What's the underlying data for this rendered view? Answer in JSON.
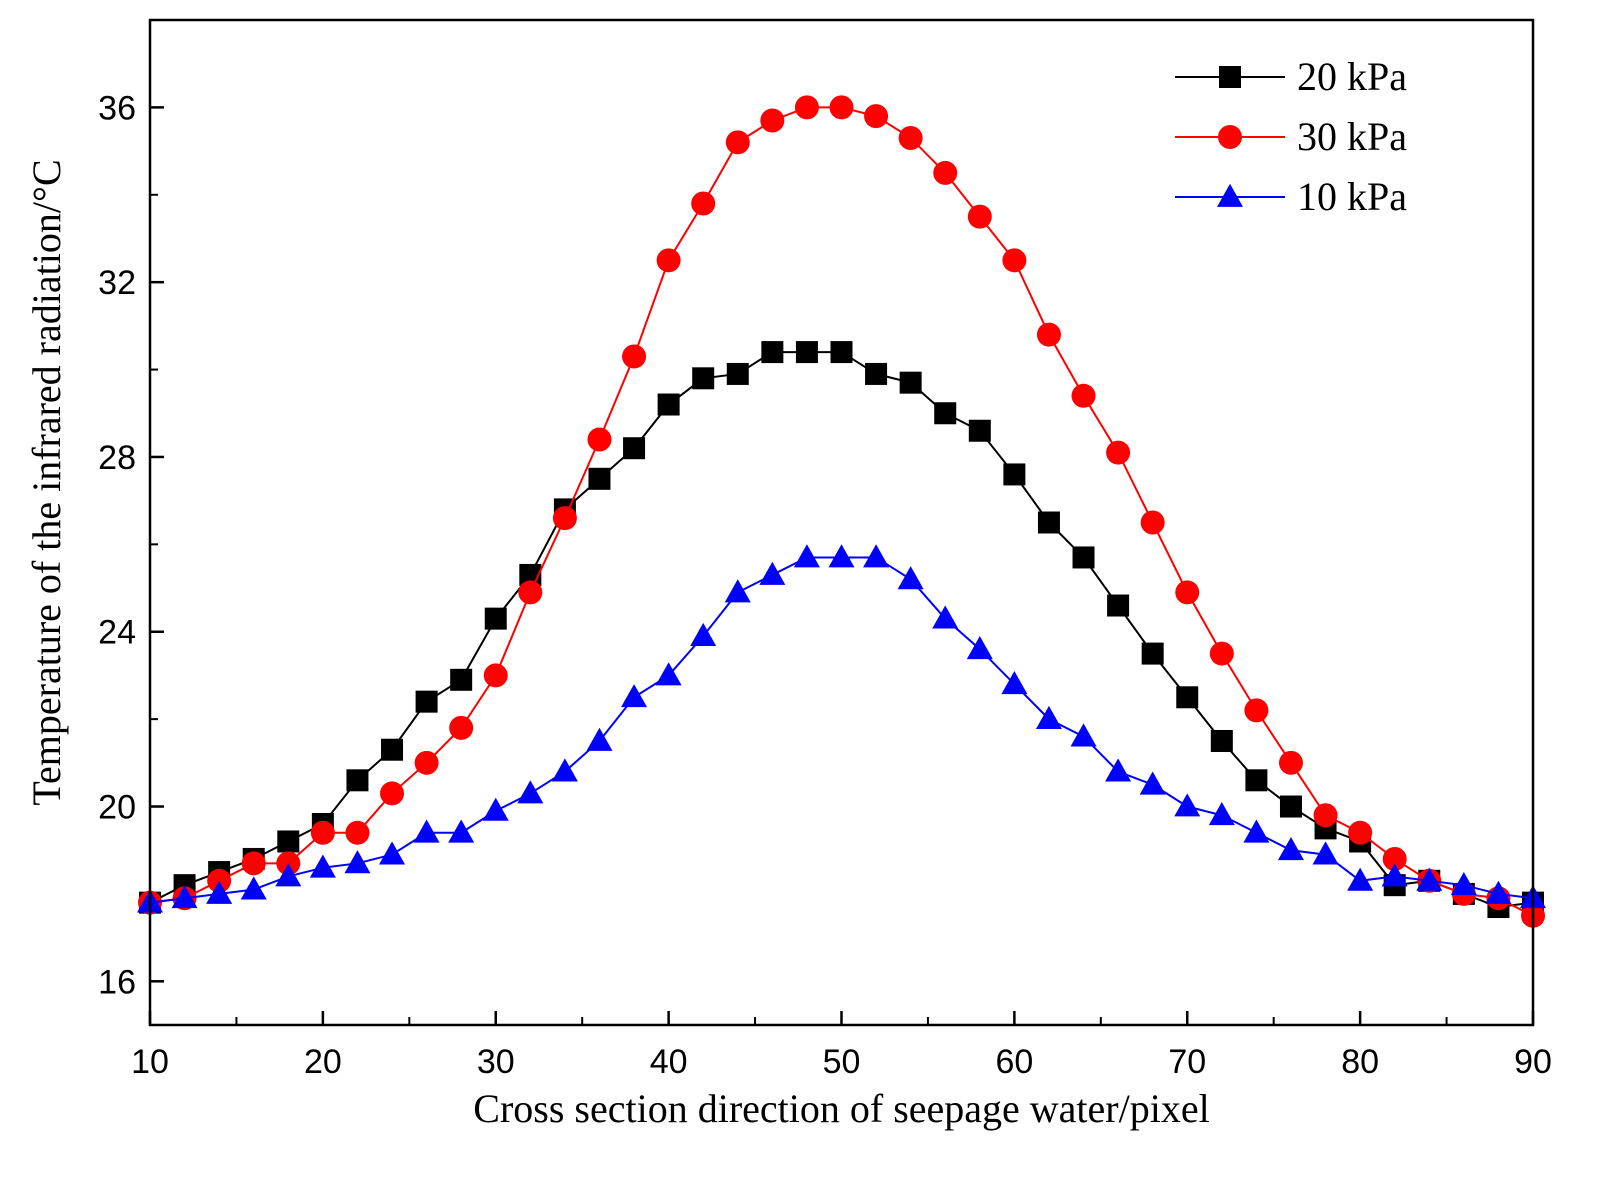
{
  "chart_data": {
    "type": "line",
    "title": "",
    "xlabel": "Cross section direction of seepage water/pixel",
    "ylabel": "Temperature of the infrared radiation/°C",
    "xlim": [
      10,
      90
    ],
    "ylim": [
      15,
      38
    ],
    "xticks": [
      10,
      20,
      30,
      40,
      50,
      60,
      70,
      80,
      90
    ],
    "yticks": [
      16,
      20,
      24,
      28,
      32,
      36
    ],
    "legend_position": "top-right",
    "x": [
      10,
      12,
      14,
      16,
      18,
      20,
      22,
      24,
      26,
      28,
      30,
      32,
      34,
      36,
      38,
      40,
      42,
      44,
      46,
      48,
      50,
      52,
      54,
      56,
      58,
      60,
      62,
      64,
      66,
      68,
      70,
      72,
      74,
      76,
      78,
      80,
      82,
      84,
      86,
      88,
      90
    ],
    "series": [
      {
        "name": "20 kPa",
        "color": "#000000",
        "marker": "square",
        "values": [
          17.8,
          18.2,
          18.5,
          18.8,
          19.2,
          19.6,
          20.6,
          21.3,
          22.4,
          22.9,
          24.3,
          25.3,
          26.8,
          27.5,
          28.2,
          29.2,
          29.8,
          29.9,
          30.4,
          30.4,
          30.4,
          29.9,
          29.7,
          29.0,
          28.6,
          27.6,
          26.5,
          25.7,
          24.6,
          23.5,
          22.5,
          21.5,
          20.6,
          20.0,
          19.5,
          19.2,
          18.2,
          18.3,
          18.0,
          17.7,
          17.8
        ]
      },
      {
        "name": "30 kPa",
        "color": "#ff0000",
        "marker": "circle",
        "values": [
          17.8,
          17.9,
          18.3,
          18.7,
          18.7,
          19.4,
          19.4,
          20.3,
          21.0,
          21.8,
          23.0,
          24.9,
          26.6,
          28.4,
          30.3,
          32.5,
          33.8,
          35.2,
          35.7,
          36.0,
          36.0,
          35.8,
          35.3,
          34.5,
          33.5,
          32.5,
          30.8,
          29.4,
          28.1,
          26.5,
          24.9,
          23.5,
          22.2,
          21.0,
          19.8,
          19.4,
          18.8,
          18.3,
          18.0,
          17.9,
          17.5
        ]
      },
      {
        "name": "10 kPa",
        "color": "#0000ff",
        "marker": "triangle",
        "values": [
          17.8,
          17.9,
          18.0,
          18.1,
          18.4,
          18.6,
          18.7,
          18.9,
          19.4,
          19.4,
          19.9,
          20.3,
          20.8,
          21.5,
          22.5,
          23.0,
          23.9,
          24.9,
          25.3,
          25.7,
          25.7,
          25.7,
          25.2,
          24.3,
          23.6,
          22.8,
          22.0,
          21.6,
          20.8,
          20.5,
          20.0,
          19.8,
          19.4,
          19.0,
          18.9,
          18.3,
          18.4,
          18.3,
          18.2,
          18.0,
          17.9
        ]
      }
    ]
  }
}
